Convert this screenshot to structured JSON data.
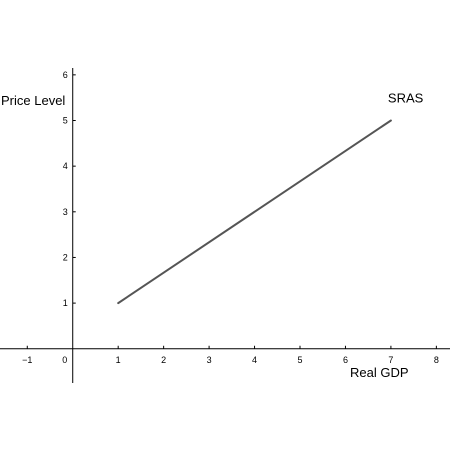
{
  "chart_data": {
    "type": "line",
    "xlabel": "Real GDP",
    "ylabel": "Price Level",
    "xlim": [
      -1.6,
      8.3
    ],
    "ylim": [
      -0.75,
      6.15
    ],
    "x_ticks": [
      -1,
      1,
      2,
      3,
      4,
      5,
      6,
      7,
      8
    ],
    "y_ticks": [
      1,
      2,
      3,
      4,
      5,
      6
    ],
    "origin_label": "0",
    "grid": false,
    "series": [
      {
        "name": "SRAS",
        "color": "#555555",
        "points": [
          [
            1,
            1
          ],
          [
            7,
            5
          ]
        ]
      }
    ]
  }
}
